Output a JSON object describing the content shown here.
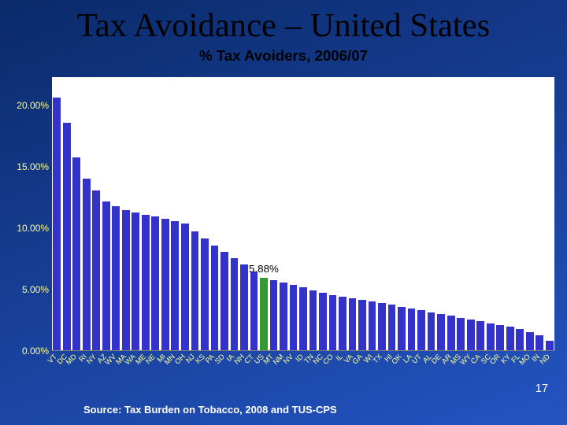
{
  "slide": {
    "background_gradient": {
      "from": "#0a2a6a",
      "to": "#2454c2",
      "angle_deg": 160
    },
    "title": {
      "text": "Tax Avoidance – United States",
      "color": "#000000",
      "fontsize_pt": 32,
      "font_family": "Times New Roman"
    },
    "page_number": {
      "text": "17",
      "color": "#ffffff",
      "fontsize_pt": 11
    },
    "source": {
      "text": "Source: Tax Burden on Tobacco, 2008 and TUS-CPS",
      "color": "#ffffff",
      "fontsize_pt": 13
    }
  },
  "chart": {
    "type": "bar",
    "title": {
      "text": "% Tax Avoiders, 2006/07",
      "color": "#000000",
      "fontsize_pt": 14,
      "font_weight": 700
    },
    "plot_background": "#ffffff",
    "grid_color": "#808080",
    "axis_line_color": "#808080",
    "y": {
      "min": 0,
      "max": 22.3,
      "ticks": [
        {
          "value": 0,
          "label": "0.00%"
        },
        {
          "value": 5,
          "label": "5.00%"
        },
        {
          "value": 10,
          "label": "10.00%"
        },
        {
          "value": 15,
          "label": "15.00%"
        },
        {
          "value": 20,
          "label": "20.00%"
        }
      ],
      "tick_fontsize_pt": 9,
      "tick_color": "#ffff99"
    },
    "x": {
      "tick_fontsize_pt": 7,
      "tick_color": "#ffff99",
      "rotation_deg": -45
    },
    "series": {
      "bar_color": "#3333cc",
      "highlight_color": "#339933",
      "bar_width_ratio": 0.78
    },
    "callout": {
      "index": 21,
      "text": "5.88%",
      "color": "#000000",
      "fontsize_pt": 10
    },
    "categories": [
      "VT",
      "DC",
      "MD",
      "RI",
      "NY",
      "AZ",
      "WV",
      "MA",
      "WA",
      "ME",
      "NE",
      "MI",
      "MN",
      "OH",
      "NJ",
      "KS",
      "PA",
      "SD",
      "IA",
      "NH",
      "CT",
      "US",
      "MT",
      "NM",
      "NV",
      "ID",
      "TN",
      "NC",
      "CO",
      "IL",
      "VA",
      "GA",
      "WI",
      "TX",
      "HI",
      "OK",
      "LA",
      "UT",
      "AL",
      "DE",
      "AR",
      "MS",
      "WY",
      "CA",
      "SC",
      "OR",
      "KY",
      "FL",
      "MO",
      "IN",
      "ND"
    ],
    "values": [
      20.6,
      18.5,
      15.7,
      14.0,
      13.0,
      12.1,
      11.7,
      11.4,
      11.2,
      11.0,
      10.9,
      10.7,
      10.5,
      10.3,
      9.7,
      9.1,
      8.5,
      8.0,
      7.5,
      7.0,
      6.4,
      5.88,
      5.7,
      5.5,
      5.3,
      5.1,
      4.9,
      4.7,
      4.5,
      4.35,
      4.2,
      4.1,
      4.0,
      3.85,
      3.7,
      3.55,
      3.4,
      3.25,
      3.1,
      2.95,
      2.8,
      2.65,
      2.5,
      2.35,
      2.2,
      2.05,
      1.9,
      1.7,
      1.5,
      1.2,
      0.8
    ],
    "highlight_index": 21
  }
}
